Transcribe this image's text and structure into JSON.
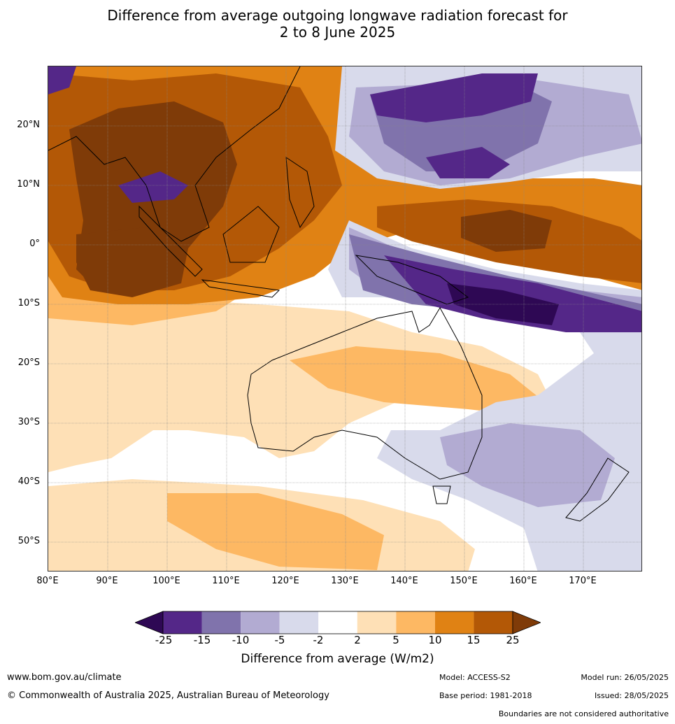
{
  "title_line1": "Difference from average outgoing longwave radiation forecast for",
  "title_line2": "2 to 8 June 2025",
  "lat_ticks": [
    "20°N",
    "10°N",
    "0°",
    "10°S",
    "20°S",
    "30°S",
    "40°S",
    "50°S"
  ],
  "lon_ticks": [
    "80°E",
    "90°E",
    "100°E",
    "110°E",
    "120°E",
    "130°E",
    "140°E",
    "150°E",
    "160°E",
    "170°E"
  ],
  "colorbar": {
    "ticks": [
      "-25",
      "-15",
      "-10",
      "-5",
      "-2",
      "2",
      "5",
      "10",
      "15",
      "25"
    ],
    "colors": [
      "#2e0854",
      "#542788",
      "#8073ac",
      "#b2abd2",
      "#d8daeb",
      "#ffffff",
      "#fee0b6",
      "#fdb863",
      "#e08214",
      "#b35806",
      "#7f3b08"
    ],
    "label": "Difference from average (W/m2)"
  },
  "footer": {
    "url": "www.bom.gov.au/climate",
    "copyright": "© Commonwealth of Australia 2025, Australian Bureau of Meteorology",
    "model": "Model: ACCESS-S2",
    "base_period": "Base period: 1981-2018",
    "model_run": "Model run: 26/05/2025",
    "issued": "Issued: 28/05/2025",
    "disclaimer": "Boundaries are not considered authoritative"
  }
}
